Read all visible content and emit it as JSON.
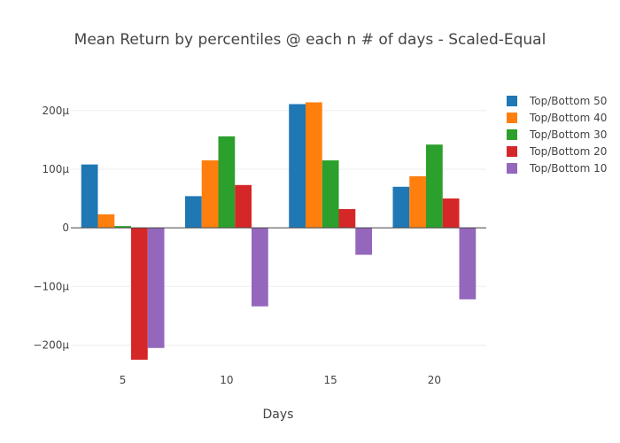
{
  "chart_data": {
    "type": "bar",
    "title": "Mean Return by percentiles @ each n # of days - Scaled-Equal",
    "xlabel": "Days",
    "ylabel": "",
    "categories": [
      "5",
      "10",
      "15",
      "20"
    ],
    "ylim": [
      -0.000225,
      0.000245
    ],
    "yticks": [
      {
        "value": 0.0002,
        "label": "200µ"
      },
      {
        "value": 0.0001,
        "label": "100µ"
      },
      {
        "value": 0,
        "label": "0"
      },
      {
        "value": -0.0001,
        "label": "−100µ"
      },
      {
        "value": -0.0002,
        "label": "−200µ"
      }
    ],
    "grid": true,
    "legend": "top-right",
    "series": [
      {
        "name": "Top/Bottom 50",
        "color": "#1f77b4",
        "values": [
          0.000108,
          5.4e-05,
          0.000211,
          7e-05
        ]
      },
      {
        "name": "Top/Bottom 40",
        "color": "#ff7f0e",
        "values": [
          2.3e-05,
          0.000115,
          0.000214,
          8.8e-05
        ]
      },
      {
        "name": "Top/Bottom 30",
        "color": "#2ca02c",
        "values": [
          3e-06,
          0.000156,
          0.000115,
          0.000142
        ]
      },
      {
        "name": "Top/Bottom 20",
        "color": "#d62728",
        "values": [
          -0.000225,
          7.3e-05,
          3.2e-05,
          5e-05
        ]
      },
      {
        "name": "Top/Bottom 10",
        "color": "#9467bd",
        "values": [
          -0.000205,
          -0.000134,
          -4.6e-05,
          -0.000122
        ]
      }
    ]
  }
}
